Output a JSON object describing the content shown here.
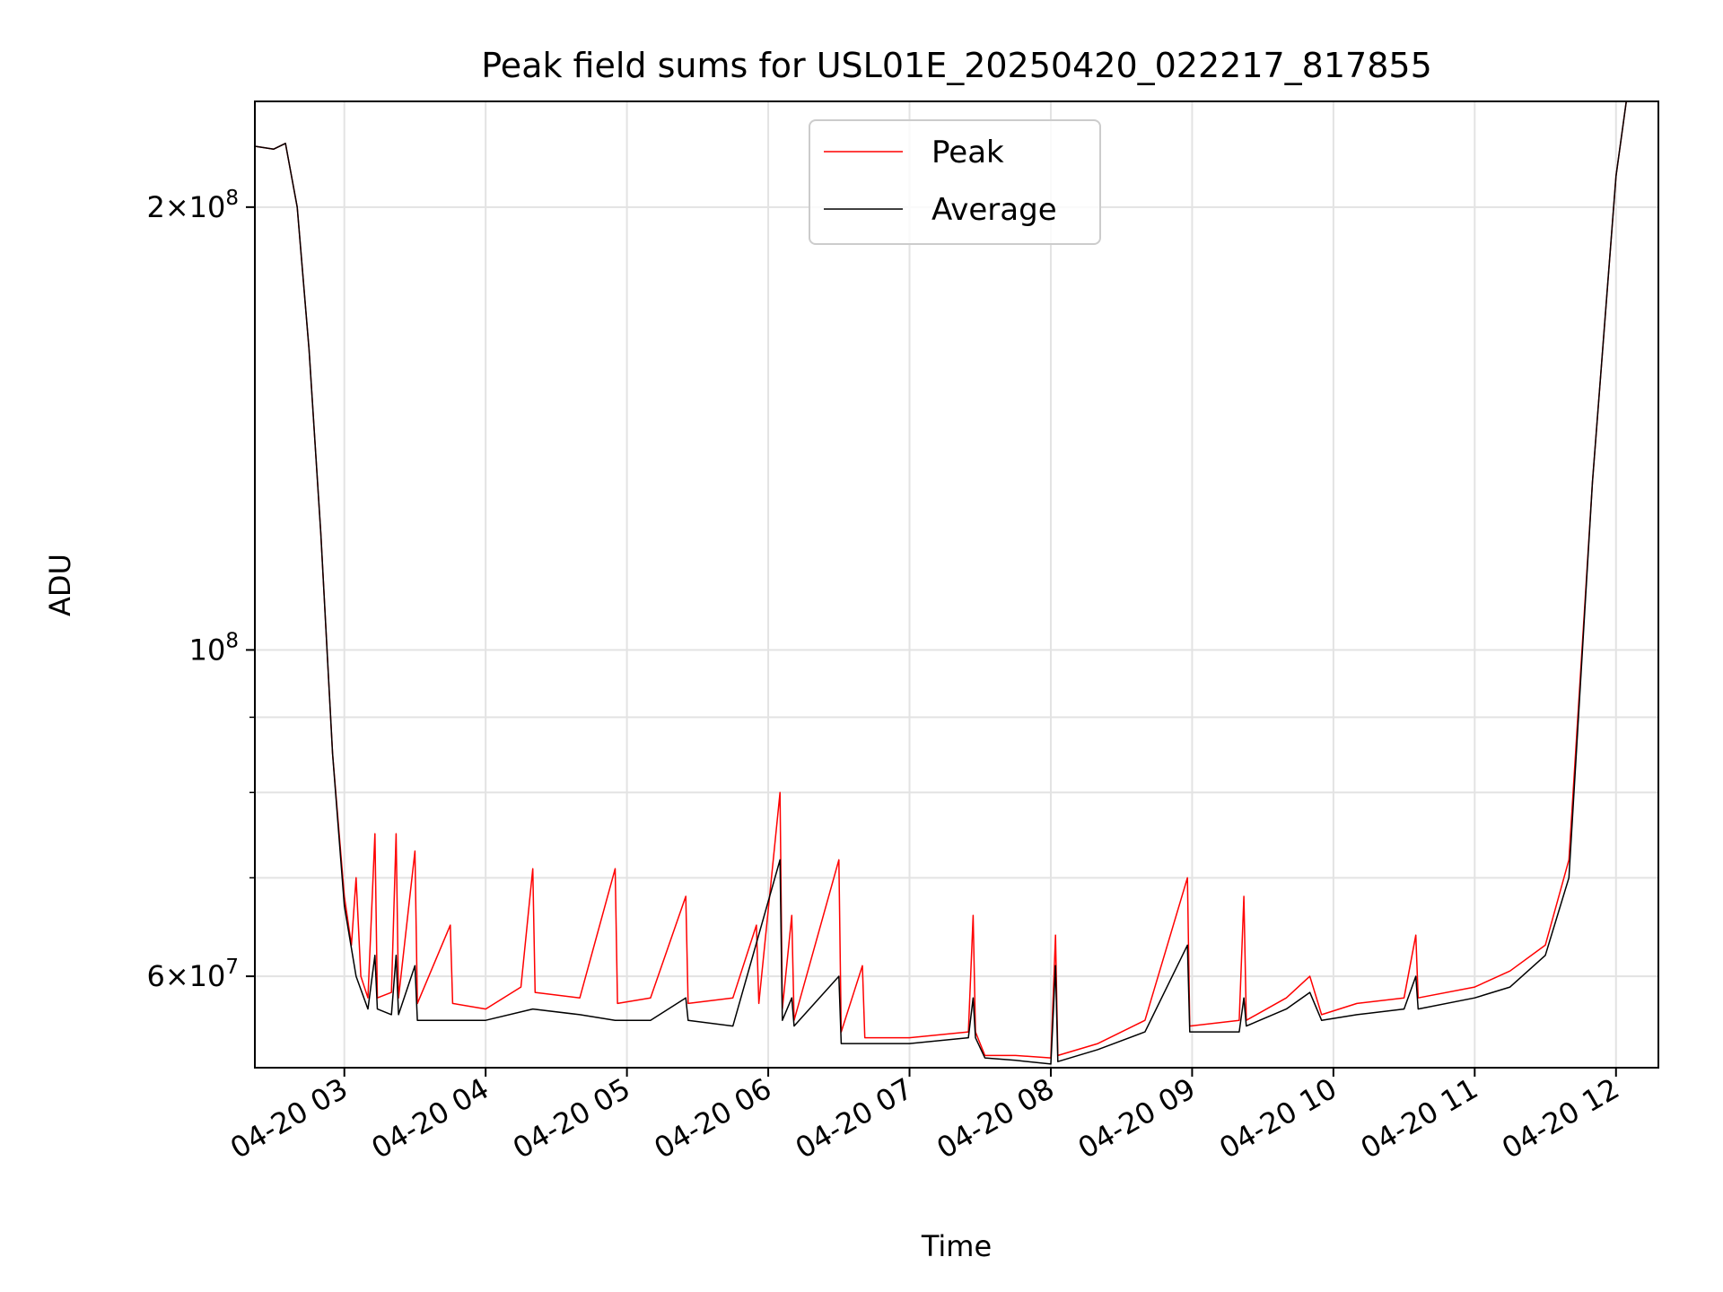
{
  "chart_data": {
    "type": "line",
    "title": "Peak field sums for USL01E_20250420_022217_817855",
    "xlabel": "Time",
    "ylabel": "ADU",
    "y_scale": "log",
    "xlim": [
      "04-20 02:22",
      "04-20 12:18"
    ],
    "ylim": [
      52000000,
      236000000
    ],
    "x_ticks": [
      "04-20 03",
      "04-20 04",
      "04-20 05",
      "04-20 06",
      "04-20 07",
      "04-20 08",
      "04-20 09",
      "04-20 10",
      "04-20 11",
      "04-20 12"
    ],
    "y_ticks": [
      {
        "value": 60000000,
        "base": "6",
        "exp": "7"
      },
      {
        "value": 100000000,
        "base": "",
        "exp": "8"
      },
      {
        "value": 200000000,
        "base": "2",
        "exp": "8"
      }
    ],
    "y_minor_ticks": [
      70000000,
      80000000,
      90000000
    ],
    "grid": true,
    "legend_position": "top-center",
    "series": [
      {
        "name": "Peak",
        "color": "#ff0000",
        "points": [
          [
            "02:22",
            220000000
          ],
          [
            "02:30",
            219000000
          ],
          [
            "02:35",
            221000000
          ],
          [
            "02:40",
            200000000
          ],
          [
            "02:45",
            160000000
          ],
          [
            "02:50",
            120000000
          ],
          [
            "02:55",
            85000000
          ],
          [
            "03:00",
            68000000
          ],
          [
            "03:03",
            63000000
          ],
          [
            "03:05",
            70000000
          ],
          [
            "03:07",
            60000000
          ],
          [
            "03:10",
            58000000
          ],
          [
            "03:13",
            75000000
          ],
          [
            "03:14",
            58000000
          ],
          [
            "03:20",
            58500000
          ],
          [
            "03:22",
            75000000
          ],
          [
            "03:23",
            58000000
          ],
          [
            "03:30",
            73000000
          ],
          [
            "03:31",
            57500000
          ],
          [
            "03:45",
            65000000
          ],
          [
            "03:46",
            57500000
          ],
          [
            "04:00",
            57000000
          ],
          [
            "04:15",
            59000000
          ],
          [
            "04:20",
            71000000
          ],
          [
            "04:21",
            58500000
          ],
          [
            "04:40",
            58000000
          ],
          [
            "04:55",
            71000000
          ],
          [
            "04:56",
            57500000
          ],
          [
            "05:10",
            58000000
          ],
          [
            "05:25",
            68000000
          ],
          [
            "05:26",
            57500000
          ],
          [
            "05:45",
            58000000
          ],
          [
            "05:55",
            65000000
          ],
          [
            "05:56",
            57500000
          ],
          [
            "06:05",
            80000000
          ],
          [
            "06:06",
            57000000
          ],
          [
            "06:10",
            66000000
          ],
          [
            "06:11",
            56000000
          ],
          [
            "06:30",
            72000000
          ],
          [
            "06:31",
            55000000
          ],
          [
            "06:40",
            61000000
          ],
          [
            "06:41",
            54500000
          ],
          [
            "07:00",
            54500000
          ],
          [
            "07:25",
            55000000
          ],
          [
            "07:27",
            66000000
          ],
          [
            "07:28",
            55000000
          ],
          [
            "07:32",
            53000000
          ],
          [
            "07:45",
            53000000
          ],
          [
            "08:00",
            52800000
          ],
          [
            "08:02",
            64000000
          ],
          [
            "08:03",
            53000000
          ],
          [
            "08:20",
            54000000
          ],
          [
            "08:40",
            56000000
          ],
          [
            "08:58",
            70000000
          ],
          [
            "08:59",
            55500000
          ],
          [
            "09:20",
            56000000
          ],
          [
            "09:22",
            68000000
          ],
          [
            "09:23",
            56000000
          ],
          [
            "09:40",
            58000000
          ],
          [
            "09:50",
            60000000
          ],
          [
            "09:55",
            56500000
          ],
          [
            "10:10",
            57500000
          ],
          [
            "10:30",
            58000000
          ],
          [
            "10:35",
            64000000
          ],
          [
            "10:36",
            58000000
          ],
          [
            "11:00",
            59000000
          ],
          [
            "11:15",
            60500000
          ],
          [
            "11:30",
            63000000
          ],
          [
            "11:40",
            72000000
          ],
          [
            "11:50",
            130000000
          ],
          [
            "12:00",
            210000000
          ],
          [
            "12:05",
            240000000
          ]
        ]
      },
      {
        "name": "Average",
        "color": "#000000",
        "points": [
          [
            "02:22",
            220000000
          ],
          [
            "02:30",
            219000000
          ],
          [
            "02:35",
            221000000
          ],
          [
            "02:40",
            200000000
          ],
          [
            "02:45",
            160000000
          ],
          [
            "02:50",
            120000000
          ],
          [
            "02:55",
            85000000
          ],
          [
            "03:00",
            67000000
          ],
          [
            "03:05",
            60000000
          ],
          [
            "03:10",
            57000000
          ],
          [
            "03:13",
            62000000
          ],
          [
            "03:14",
            57000000
          ],
          [
            "03:20",
            56500000
          ],
          [
            "03:22",
            62000000
          ],
          [
            "03:23",
            56500000
          ],
          [
            "03:30",
            61000000
          ],
          [
            "03:31",
            56000000
          ],
          [
            "03:45",
            56000000
          ],
          [
            "04:00",
            56000000
          ],
          [
            "04:20",
            57000000
          ],
          [
            "04:40",
            56500000
          ],
          [
            "04:55",
            56000000
          ],
          [
            "05:10",
            56000000
          ],
          [
            "05:25",
            58000000
          ],
          [
            "05:26",
            56000000
          ],
          [
            "05:45",
            55500000
          ],
          [
            "06:05",
            72000000
          ],
          [
            "06:06",
            56000000
          ],
          [
            "06:10",
            58000000
          ],
          [
            "06:11",
            55500000
          ],
          [
            "06:30",
            60000000
          ],
          [
            "06:31",
            54000000
          ],
          [
            "06:40",
            54000000
          ],
          [
            "07:00",
            54000000
          ],
          [
            "07:25",
            54500000
          ],
          [
            "07:27",
            58000000
          ],
          [
            "07:28",
            54500000
          ],
          [
            "07:32",
            52800000
          ],
          [
            "07:45",
            52600000
          ],
          [
            "08:00",
            52300000
          ],
          [
            "08:02",
            61000000
          ],
          [
            "08:03",
            52500000
          ],
          [
            "08:20",
            53500000
          ],
          [
            "08:40",
            55000000
          ],
          [
            "08:58",
            63000000
          ],
          [
            "08:59",
            55000000
          ],
          [
            "09:20",
            55000000
          ],
          [
            "09:22",
            58000000
          ],
          [
            "09:23",
            55500000
          ],
          [
            "09:40",
            57000000
          ],
          [
            "09:50",
            58500000
          ],
          [
            "09:55",
            56000000
          ],
          [
            "10:10",
            56500000
          ],
          [
            "10:30",
            57000000
          ],
          [
            "10:35",
            60000000
          ],
          [
            "10:36",
            57000000
          ],
          [
            "11:00",
            58000000
          ],
          [
            "11:15",
            59000000
          ],
          [
            "11:30",
            62000000
          ],
          [
            "11:40",
            70000000
          ],
          [
            "11:50",
            130000000
          ],
          [
            "12:00",
            210000000
          ],
          [
            "12:05",
            240000000
          ]
        ]
      }
    ]
  }
}
